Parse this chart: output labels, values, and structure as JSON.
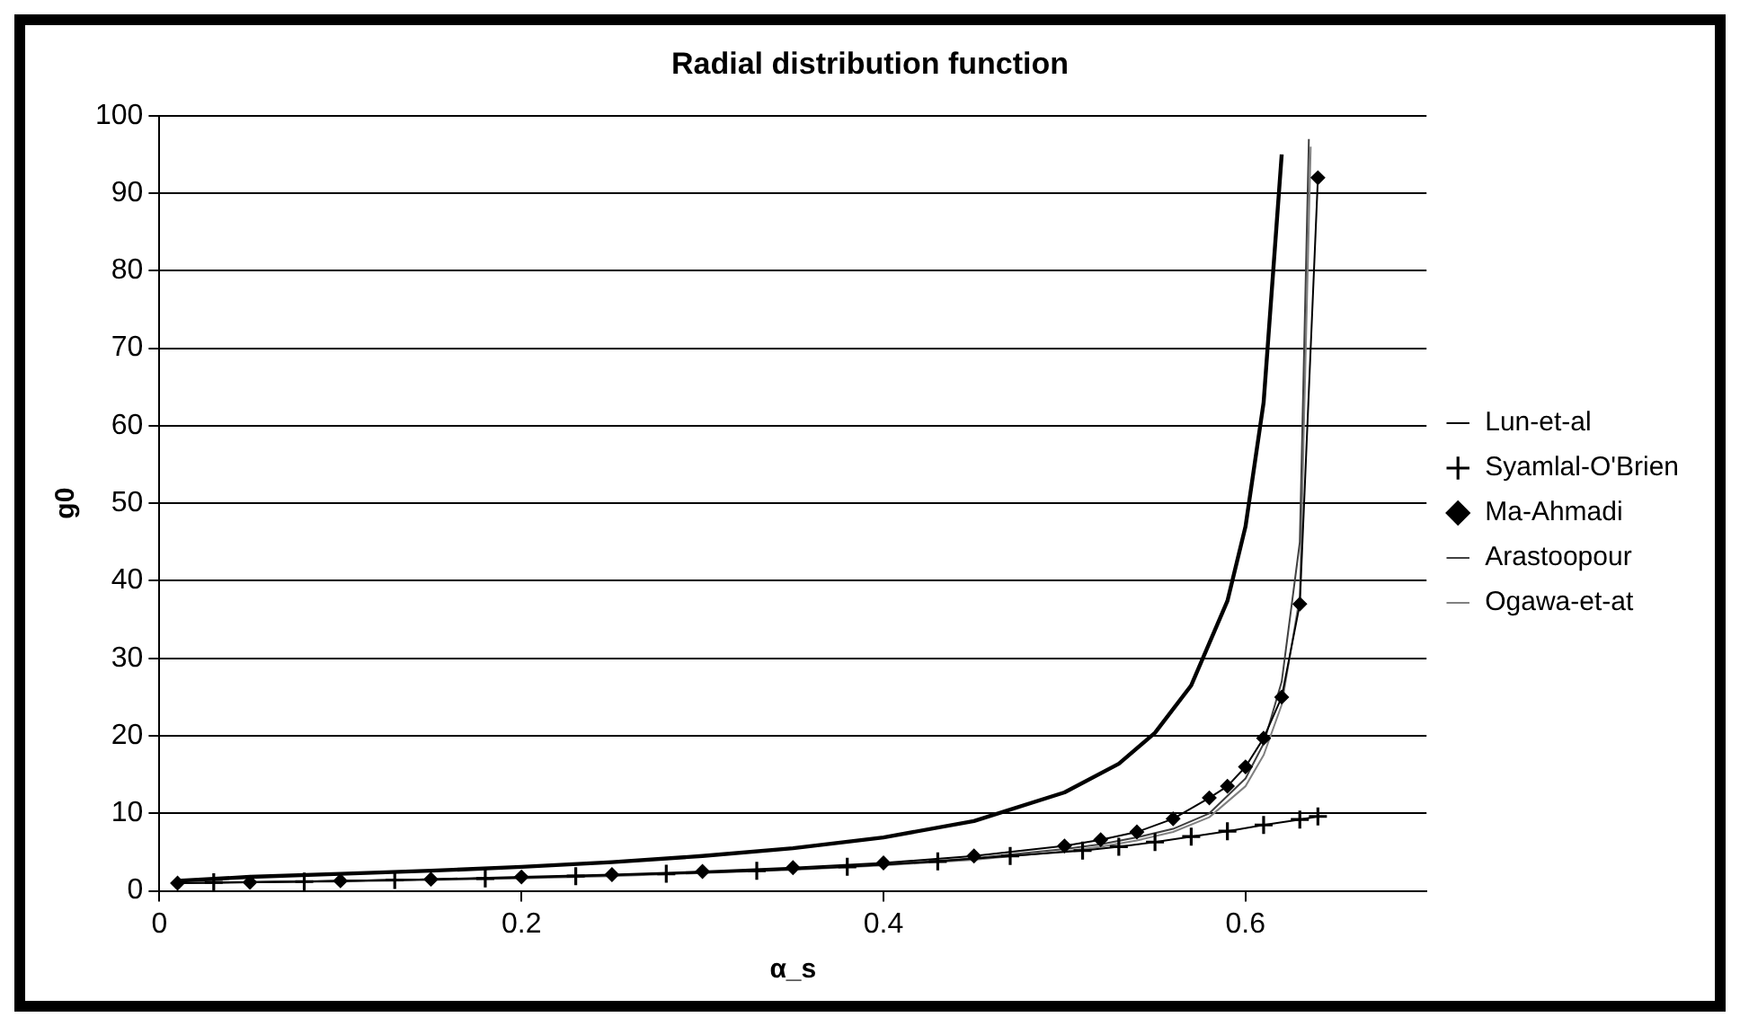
{
  "chart_data": {
    "type": "line",
    "title": "Radial distribution function",
    "xlabel": "α_s",
    "ylabel": "g0",
    "xlim": [
      0,
      0.7
    ],
    "xticks": [
      0,
      0.2,
      0.4,
      0.6
    ],
    "ylim": [
      0,
      100
    ],
    "yticks": [
      0,
      10,
      20,
      30,
      40,
      50,
      60,
      70,
      80,
      90,
      100
    ],
    "grid": "y",
    "legend": "right",
    "series": [
      {
        "name": "Lun-et-al",
        "color": "#000000",
        "marker": "none",
        "x": [
          0.01,
          0.05,
          0.1,
          0.15,
          0.2,
          0.25,
          0.3,
          0.35,
          0.4,
          0.45,
          0.5,
          0.53,
          0.55,
          0.57,
          0.59,
          0.6,
          0.61,
          0.62
        ],
        "values": [
          1.3,
          1.8,
          2.2,
          2.6,
          3.1,
          3.7,
          4.5,
          5.5,
          6.9,
          9,
          12.7,
          16.4,
          20.4,
          26.5,
          37.4,
          47,
          63,
          95
        ]
      },
      {
        "name": "Syamlal-O'Brien",
        "color": "#000000",
        "marker": "cross",
        "x": [
          0.03,
          0.08,
          0.13,
          0.18,
          0.23,
          0.28,
          0.33,
          0.38,
          0.43,
          0.47,
          0.51,
          0.53,
          0.55,
          0.57,
          0.59,
          0.61,
          0.63,
          0.64
        ],
        "values": [
          1.1,
          1.2,
          1.4,
          1.6,
          1.9,
          2.2,
          2.6,
          3.1,
          3.8,
          4.5,
          5.2,
          5.7,
          6.3,
          7,
          7.7,
          8.5,
          9.2,
          9.6
        ]
      },
      {
        "name": "Ma-Ahmadi",
        "color": "#000000",
        "marker": "diamond",
        "x": [
          0.01,
          0.05,
          0.1,
          0.15,
          0.2,
          0.25,
          0.3,
          0.35,
          0.4,
          0.45,
          0.5,
          0.52,
          0.54,
          0.56,
          0.58,
          0.59,
          0.6,
          0.61,
          0.62,
          0.63,
          0.64
        ],
        "values": [
          1,
          1.1,
          1.3,
          1.5,
          1.8,
          2.1,
          2.5,
          3,
          3.6,
          4.5,
          5.8,
          6.6,
          7.6,
          9.3,
          12,
          13.5,
          16,
          19.7,
          25,
          37,
          92
        ]
      },
      {
        "name": "Arastoopour",
        "color": "#404040",
        "marker": "none",
        "x": [
          0.01,
          0.05,
          0.1,
          0.15,
          0.2,
          0.25,
          0.3,
          0.35,
          0.4,
          0.45,
          0.5,
          0.52,
          0.54,
          0.56,
          0.58,
          0.6,
          0.61,
          0.62,
          0.63,
          0.635
        ],
        "values": [
          1,
          1.1,
          1.3,
          1.5,
          1.7,
          2,
          2.4,
          2.8,
          3.4,
          4.2,
          5.4,
          6,
          6.9,
          8,
          10,
          14.5,
          19,
          27,
          45,
          97
        ]
      },
      {
        "name": "Ogawa-et-at",
        "color": "#808080",
        "marker": "none",
        "x": [
          0.01,
          0.05,
          0.1,
          0.15,
          0.2,
          0.25,
          0.3,
          0.35,
          0.4,
          0.45,
          0.5,
          0.52,
          0.54,
          0.56,
          0.58,
          0.6,
          0.61,
          0.62,
          0.63,
          0.636
        ],
        "values": [
          1,
          1.1,
          1.2,
          1.4,
          1.6,
          1.9,
          2.3,
          2.7,
          3.3,
          4,
          5.1,
          5.7,
          6.5,
          7.6,
          9.5,
          13.5,
          17.5,
          24,
          38,
          96
        ]
      }
    ]
  }
}
